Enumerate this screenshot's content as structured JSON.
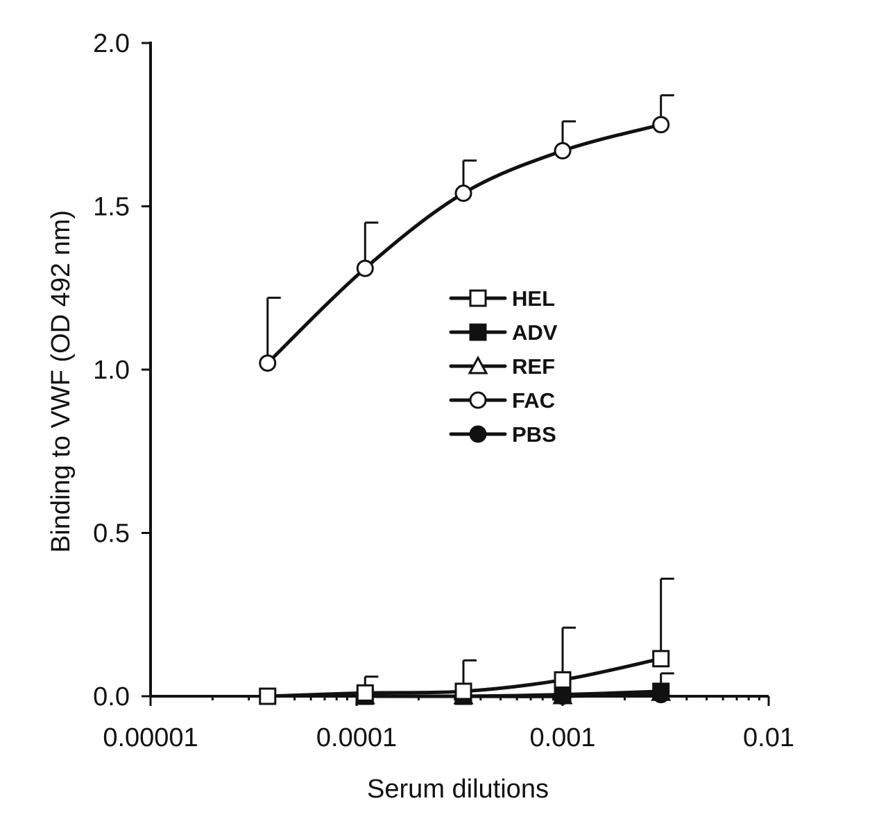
{
  "chart_data": {
    "type": "line",
    "title": "",
    "xlabel": "Serum dilutions",
    "ylabel": "Binding to VWF (OD 492 nm)",
    "xscale": "log",
    "xlim": [
      1e-05,
      0.01
    ],
    "ylim": [
      0.0,
      2.0
    ],
    "x_ticks": [
      {
        "value": 1e-05,
        "label": "0.00001"
      },
      {
        "value": 0.0001,
        "label": "0.0001"
      },
      {
        "value": 0.001,
        "label": "0.001"
      },
      {
        "value": 0.01,
        "label": "0.01"
      }
    ],
    "y_ticks": [
      {
        "value": 0.0,
        "label": "0.0"
      },
      {
        "value": 0.5,
        "label": "0.5"
      },
      {
        "value": 1.0,
        "label": "1.0"
      },
      {
        "value": 1.5,
        "label": "1.5"
      },
      {
        "value": 2.0,
        "label": "2.0"
      }
    ],
    "x": [
      3.7e-05,
      0.00011,
      0.00033,
      0.001,
      0.003
    ],
    "legend_position": "center",
    "series": [
      {
        "name": "HEL",
        "marker": "square-open",
        "x": [
          3.7e-05,
          0.00011,
          0.00033,
          0.001,
          0.003
        ],
        "values": [
          0.0,
          0.01,
          0.015,
          0.05,
          0.115
        ],
        "err_upper": [
          null,
          0.06,
          0.11,
          0.21,
          0.36
        ]
      },
      {
        "name": "ADV",
        "marker": "square-filled",
        "x": [
          0.00011,
          0.00033,
          0.001,
          0.003
        ],
        "values": [
          0.0,
          0.0,
          0.005,
          0.015
        ],
        "err_upper": [
          null,
          null,
          null,
          0.07
        ]
      },
      {
        "name": "REF",
        "marker": "triangle-open",
        "x": [
          0.00011,
          0.00033,
          0.001,
          0.003
        ],
        "values": [
          0.0,
          0.0,
          0.0,
          0.01
        ],
        "err_upper": [
          null,
          null,
          null,
          null
        ]
      },
      {
        "name": "FAC",
        "marker": "circle-open",
        "x": [
          3.7e-05,
          0.00011,
          0.00033,
          0.001,
          0.003
        ],
        "values": [
          1.02,
          1.31,
          1.54,
          1.67,
          1.75
        ],
        "err_upper": [
          1.22,
          1.45,
          1.64,
          1.76,
          1.84
        ]
      },
      {
        "name": "PBS",
        "marker": "circle-filled",
        "x": [
          0.00011,
          0.00033,
          0.001,
          0.003
        ],
        "values": [
          0.0,
          0.0,
          0.0,
          0.005
        ],
        "err_upper": [
          null,
          null,
          null,
          null
        ]
      }
    ]
  }
}
